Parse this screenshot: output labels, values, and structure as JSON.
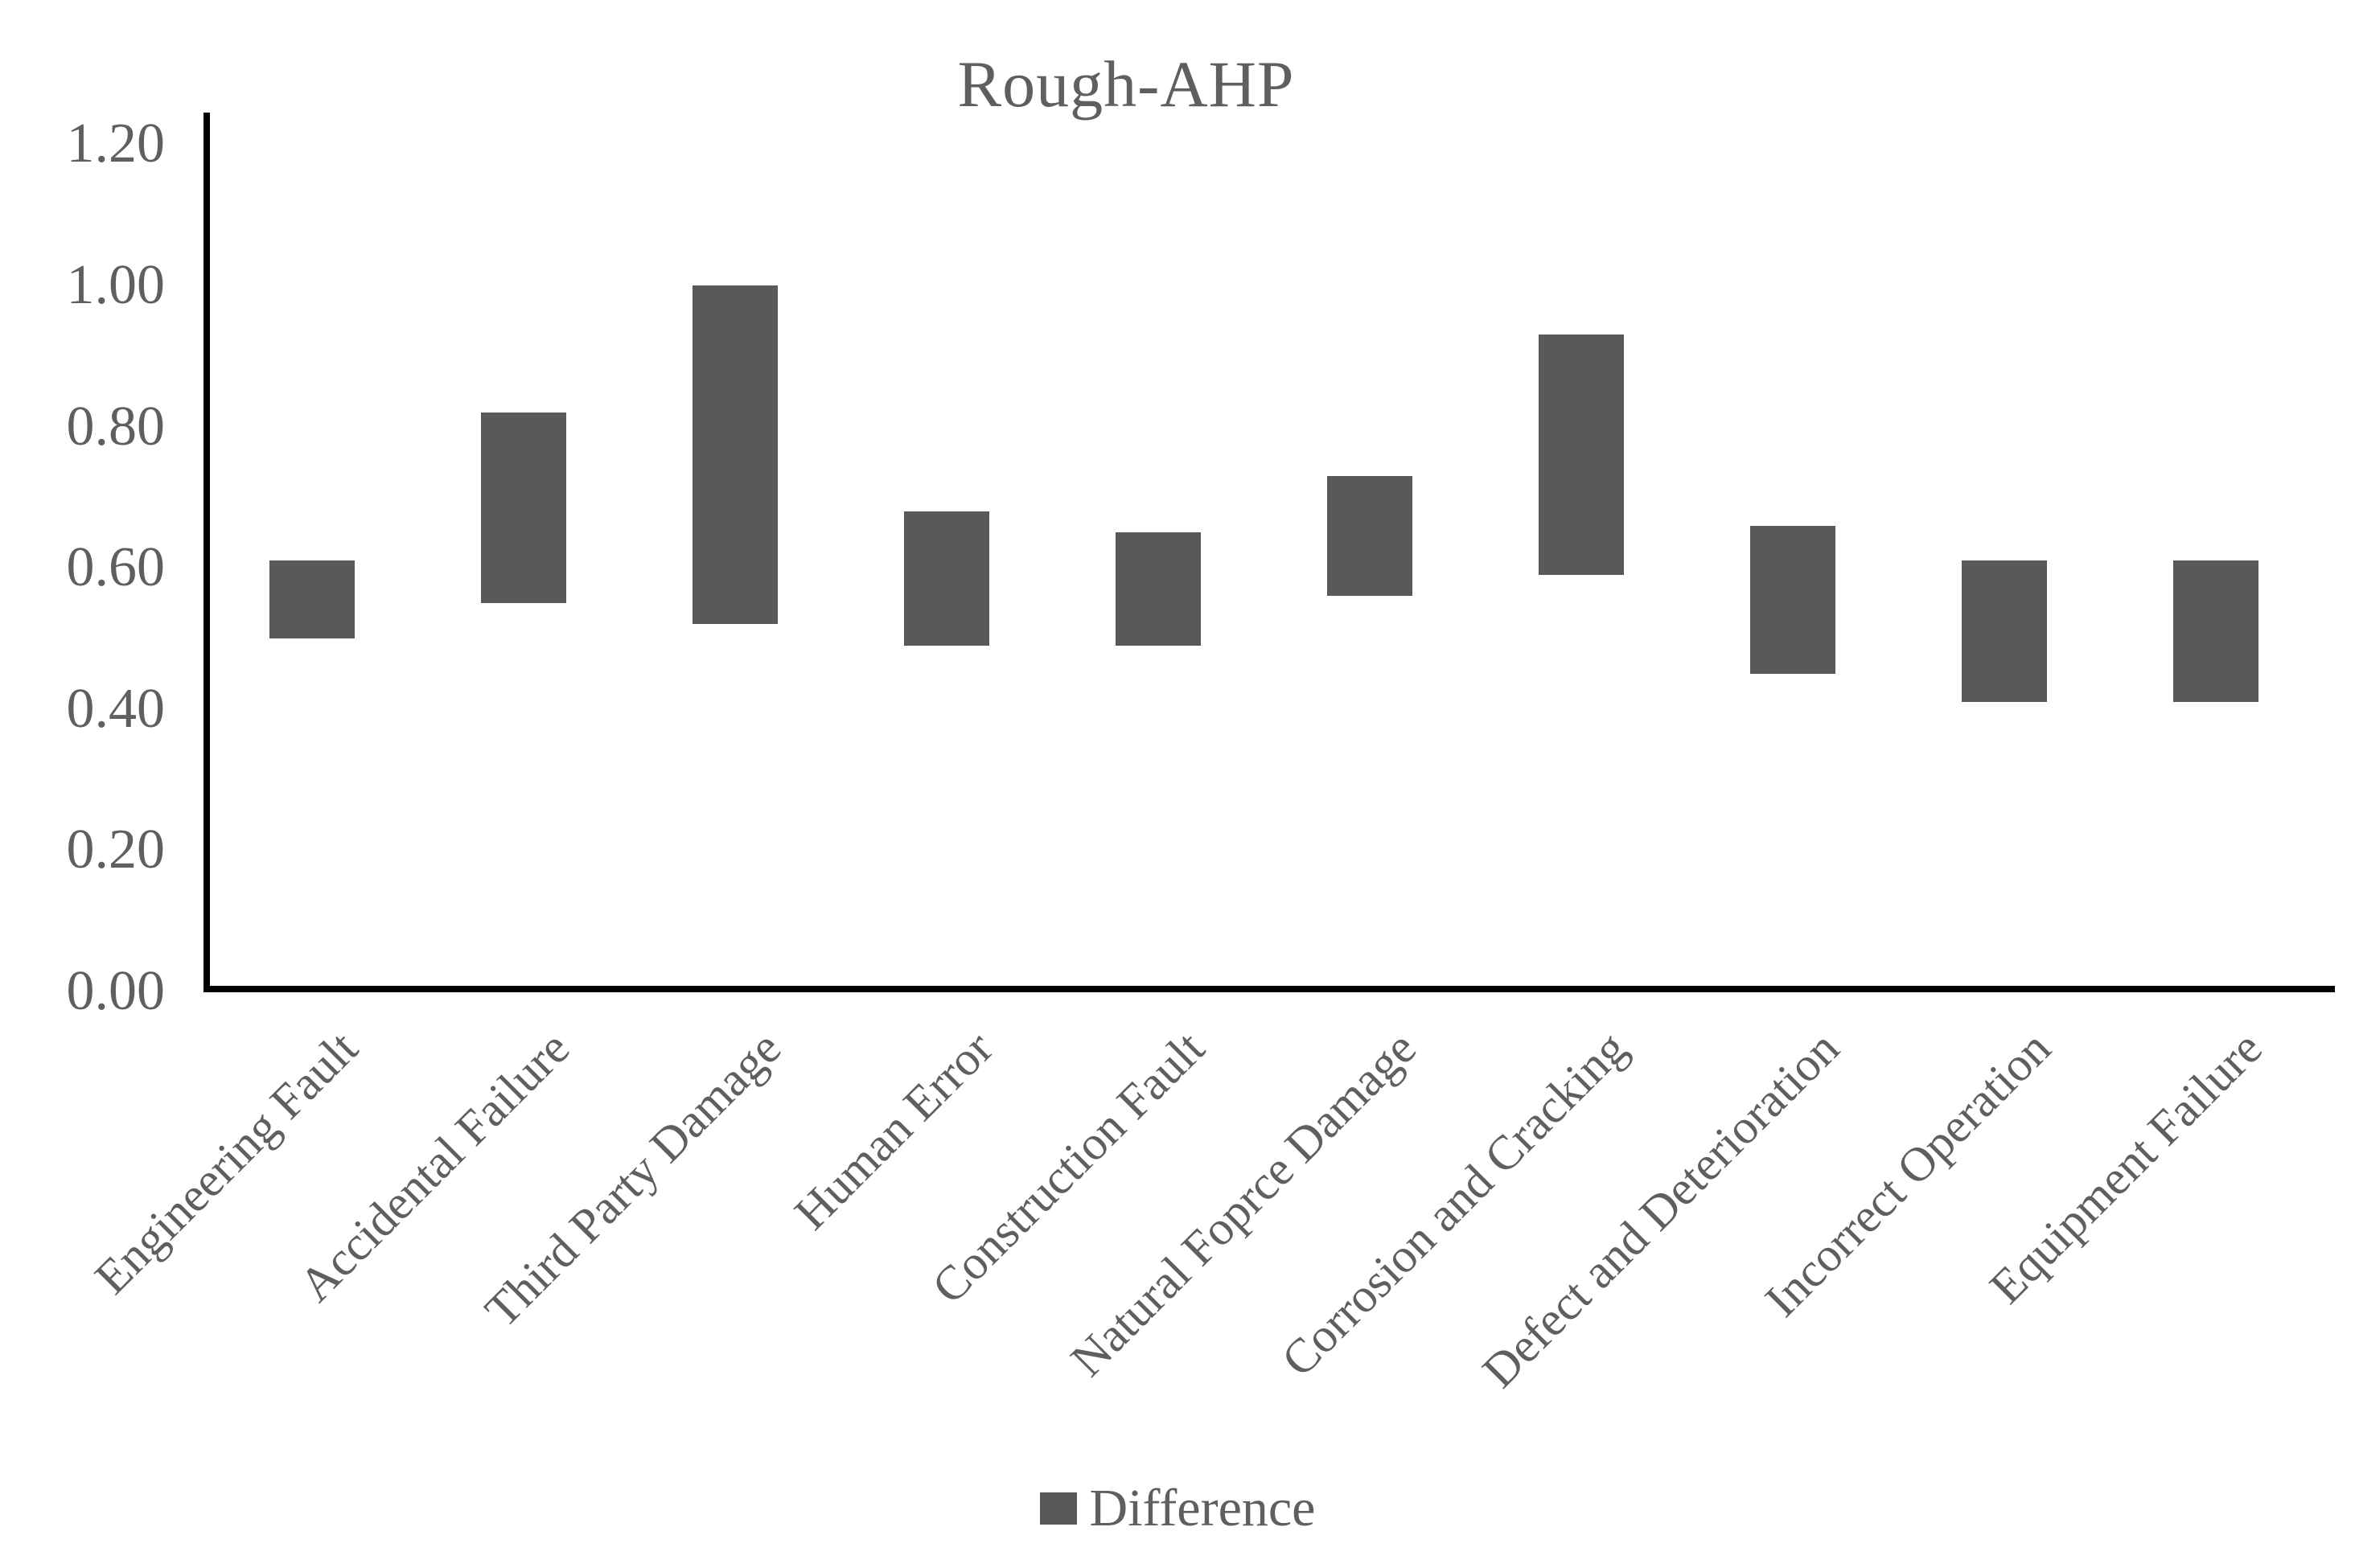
{
  "title": "Rough-AHP",
  "legend": {
    "label": "Difference"
  },
  "colors": {
    "bar": "#595959",
    "axis": "#000000",
    "text": "#5f5f5f"
  },
  "y_axis": {
    "ticks": [
      "0.00",
      "0.20",
      "0.40",
      "0.60",
      "0.80",
      "1.00",
      "1.20"
    ],
    "min": 0.0,
    "max": 1.2
  },
  "chart_data": {
    "type": "bar",
    "subtype": "floating-range-column",
    "title": "Rough-AHP",
    "xlabel": "",
    "ylabel": "",
    "ylim": [
      0.0,
      1.2
    ],
    "ytick_step": 0.2,
    "grid": false,
    "legend_position": "bottom",
    "categories": [
      "Engineering Fault",
      "Accidental Failure",
      "Third Party Damage",
      "Human Error",
      "Construction Fault",
      "Natural Foprce Damage",
      "Corrosion and Cracking",
      "Defect and  Deterioration",
      "Incorrect Operation",
      "Equipment Failure"
    ],
    "series": [
      {
        "name": "Difference",
        "ranges": [
          [
            0.5,
            0.61
          ],
          [
            0.55,
            0.82
          ],
          [
            0.52,
            1.0
          ],
          [
            0.49,
            0.68
          ],
          [
            0.49,
            0.65
          ],
          [
            0.56,
            0.73
          ],
          [
            0.59,
            0.93
          ],
          [
            0.45,
            0.66
          ],
          [
            0.41,
            0.61
          ],
          [
            0.41,
            0.61
          ]
        ]
      }
    ]
  }
}
